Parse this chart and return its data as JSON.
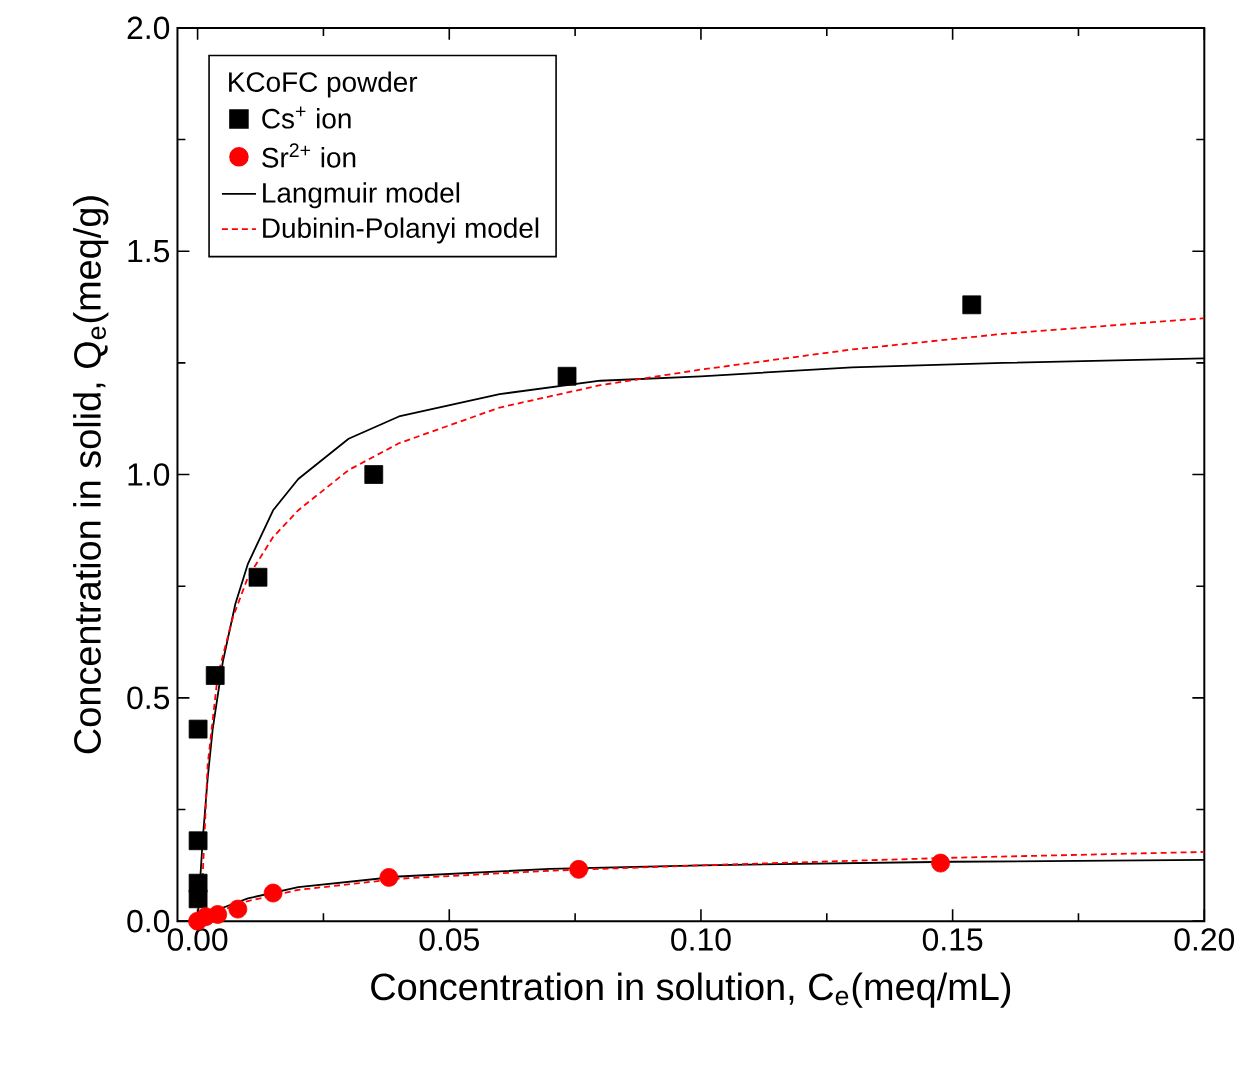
{
  "chart_data": {
    "type": "scatter",
    "xlabel": "Concentration in solution, C$_{e}$(meq/mL)",
    "ylabel": "Concentration in solid, Q$_{e}$(meq/g)",
    "legend_title": "KCoFC powder",
    "legend": "top left",
    "xlim": [
      -0.004,
      0.2
    ],
    "ylim": [
      0,
      2.0
    ],
    "xticks": [
      {
        "value": 0,
        "label": "0.00"
      },
      {
        "value": 0.05,
        "label": "0.05"
      },
      {
        "value": 0.1,
        "label": "0.10"
      },
      {
        "value": 0.15,
        "label": "0.15"
      },
      {
        "value": 0.2,
        "label": "0.20"
      }
    ],
    "yticks": [
      {
        "value": 0,
        "label": "0.0"
      },
      {
        "value": 0.5,
        "label": "0.5"
      },
      {
        "value": 1.0,
        "label": "1.0"
      },
      {
        "value": 1.5,
        "label": "1.5"
      },
      {
        "value": 2.0,
        "label": "2.0"
      }
    ],
    "series": [
      {
        "name": "Cs$^{+}$ ion",
        "type": "scatter",
        "marker": "square",
        "color": "#000000",
        "x": [
          0.0001,
          0.0001,
          0.0001,
          0.0001,
          0.0035,
          0.012,
          0.035,
          0.0734,
          0.1538
        ],
        "values": [
          0.05,
          0.085,
          0.18,
          0.43,
          0.55,
          0.77,
          1.0,
          1.22,
          1.38
        ]
      },
      {
        "name": "Sr$^{2+}$ ion",
        "type": "scatter",
        "marker": "circle",
        "color": "#ff0000",
        "x": [
          0.0,
          0.0016,
          0.004,
          0.008,
          0.015,
          0.038,
          0.0757,
          0.1476
        ],
        "values": [
          0.0,
          0.01,
          0.015,
          0.027,
          0.063,
          0.098,
          0.116,
          0.13
        ]
      },
      {
        "name": "Langmuir model",
        "type": "line",
        "marker": "none",
        "line_style": "solid",
        "color": "#000000",
        "x": [
          0,
          0.001,
          0.002,
          0.003,
          0.005,
          0.0075,
          0.01,
          0.015,
          0.02,
          0.03,
          0.04,
          0.06,
          0.08,
          0.1,
          0.13,
          0.16,
          0.2
        ],
        "values": [
          0,
          0.18,
          0.32,
          0.43,
          0.58,
          0.71,
          0.8,
          0.92,
          0.99,
          1.08,
          1.13,
          1.18,
          1.21,
          1.22,
          1.24,
          1.25,
          1.26
        ]
      },
      {
        "name": "Dubinin-Polanyi model",
        "type": "line",
        "marker": "none",
        "line_style": "dashed",
        "color": "#ff0000",
        "x": [
          0.0008,
          0.002,
          0.004,
          0.007,
          0.01,
          0.015,
          0.02,
          0.03,
          0.04,
          0.06,
          0.08,
          0.1,
          0.13,
          0.16,
          0.2
        ],
        "values": [
          0.05,
          0.35,
          0.55,
          0.68,
          0.77,
          0.86,
          0.92,
          1.01,
          1.07,
          1.15,
          1.2,
          1.235,
          1.28,
          1.315,
          1.35
        ]
      },
      {
        "type": "line",
        "marker": "none",
        "line_style": "solid",
        "color": "#000000",
        "x": [
          0,
          0.002,
          0.005,
          0.01,
          0.02,
          0.04,
          0.07,
          0.1,
          0.15,
          0.2
        ],
        "values": [
          0,
          0.014,
          0.03,
          0.051,
          0.076,
          0.1,
          0.117,
          0.125,
          0.133,
          0.137
        ]
      },
      {
        "type": "line",
        "marker": "none",
        "line_style": "dashed",
        "color": "#ff0000",
        "x": [
          0.0005,
          0.002,
          0.005,
          0.01,
          0.02,
          0.04,
          0.07,
          0.1,
          0.15,
          0.2
        ],
        "values": [
          0,
          0.01,
          0.025,
          0.045,
          0.07,
          0.095,
          0.113,
          0.125,
          0.142,
          0.155
        ]
      }
    ]
  }
}
